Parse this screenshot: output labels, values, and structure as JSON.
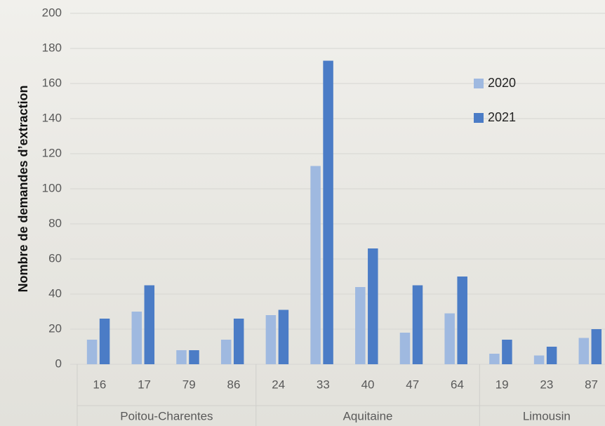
{
  "chart_data": {
    "type": "bar",
    "y_label": "Nombre de demandes d’extraction",
    "categories": [
      "16",
      "17",
      "79",
      "86",
      "24",
      "33",
      "40",
      "47",
      "64",
      "19",
      "23",
      "87"
    ],
    "category_group": [
      "Poitou-Charentes",
      "Poitou-Charentes",
      "Poitou-Charentes",
      "Poitou-Charentes",
      "Aquitaine",
      "Aquitaine",
      "Aquitaine",
      "Aquitaine",
      "Aquitaine",
      "Limousin",
      "Limousin",
      "Limousin"
    ],
    "series": [
      {
        "name": "2020",
        "color": "#9fb9e0",
        "values": [
          14,
          30,
          8,
          14,
          28,
          113,
          44,
          18,
          29,
          6,
          5,
          15
        ]
      },
      {
        "name": "2021",
        "color": "#4b7cc6",
        "values": [
          26,
          45,
          8,
          26,
          31,
          173,
          66,
          45,
          50,
          14,
          10,
          20
        ]
      }
    ],
    "ylim": [
      0,
      200
    ],
    "yticks": [
      0,
      20,
      40,
      60,
      80,
      100,
      120,
      140,
      160,
      180,
      200
    ],
    "grid": true
  }
}
